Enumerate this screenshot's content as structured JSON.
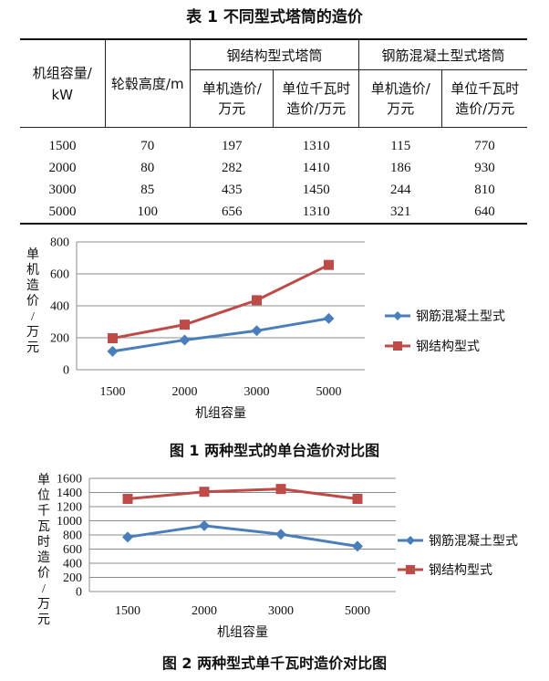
{
  "table": {
    "title": "表 1  不同型式塔筒的造价",
    "col_capacity": "机组容量/kW",
    "col_hub": "轮毂高度/m",
    "group_steel": "钢结构型式塔筒",
    "group_concrete": "钢筋混凝土型式塔筒",
    "sub_unit_cost": "单机造价/万元",
    "sub_per_kw": "单位千瓦时造价/万元",
    "rows": [
      [
        "1500",
        "70",
        "197",
        "1310",
        "115",
        "770"
      ],
      [
        "2000",
        "80",
        "282",
        "1410",
        "186",
        "930"
      ],
      [
        "3000",
        "85",
        "435",
        "1450",
        "244",
        "810"
      ],
      [
        "5000",
        "100",
        "656",
        "1310",
        "321",
        "640"
      ]
    ]
  },
  "chart_data": [
    {
      "type": "line",
      "title": "图 1  两种型式的单台造价对比图",
      "xlabel": "机组容量",
      "ylabel": "单机造价/万元",
      "categories": [
        "1500",
        "2000",
        "3000",
        "5000"
      ],
      "ylim": [
        0,
        800
      ],
      "yticks": [
        0,
        200,
        400,
        600,
        800
      ],
      "grid": true,
      "legend_position": "right",
      "series": [
        {
          "name": "钢筋混凝土型式",
          "values": [
            115,
            186,
            244,
            321
          ],
          "color": "#4a7ebb",
          "marker": "diamond"
        },
        {
          "name": "钢结构型式",
          "values": [
            197,
            282,
            435,
            656
          ],
          "color": "#be4b48",
          "marker": "square"
        }
      ]
    },
    {
      "type": "line",
      "title": "图 2  两种型式单千瓦时造价对比图",
      "xlabel": "机组容量",
      "ylabel": "单位千瓦时造价/万元",
      "categories": [
        "1500",
        "2000",
        "3000",
        "5000"
      ],
      "ylim": [
        0,
        1600
      ],
      "yticks": [
        0,
        200,
        400,
        600,
        800,
        1000,
        1200,
        1400,
        1600
      ],
      "grid": true,
      "legend_position": "right",
      "series": [
        {
          "name": "钢筋混凝土型式",
          "values": [
            770,
            930,
            810,
            640
          ],
          "color": "#4a7ebb",
          "marker": "diamond"
        },
        {
          "name": "钢结构型式",
          "values": [
            1310,
            1410,
            1450,
            1310
          ],
          "color": "#be4b48",
          "marker": "square"
        }
      ]
    }
  ]
}
